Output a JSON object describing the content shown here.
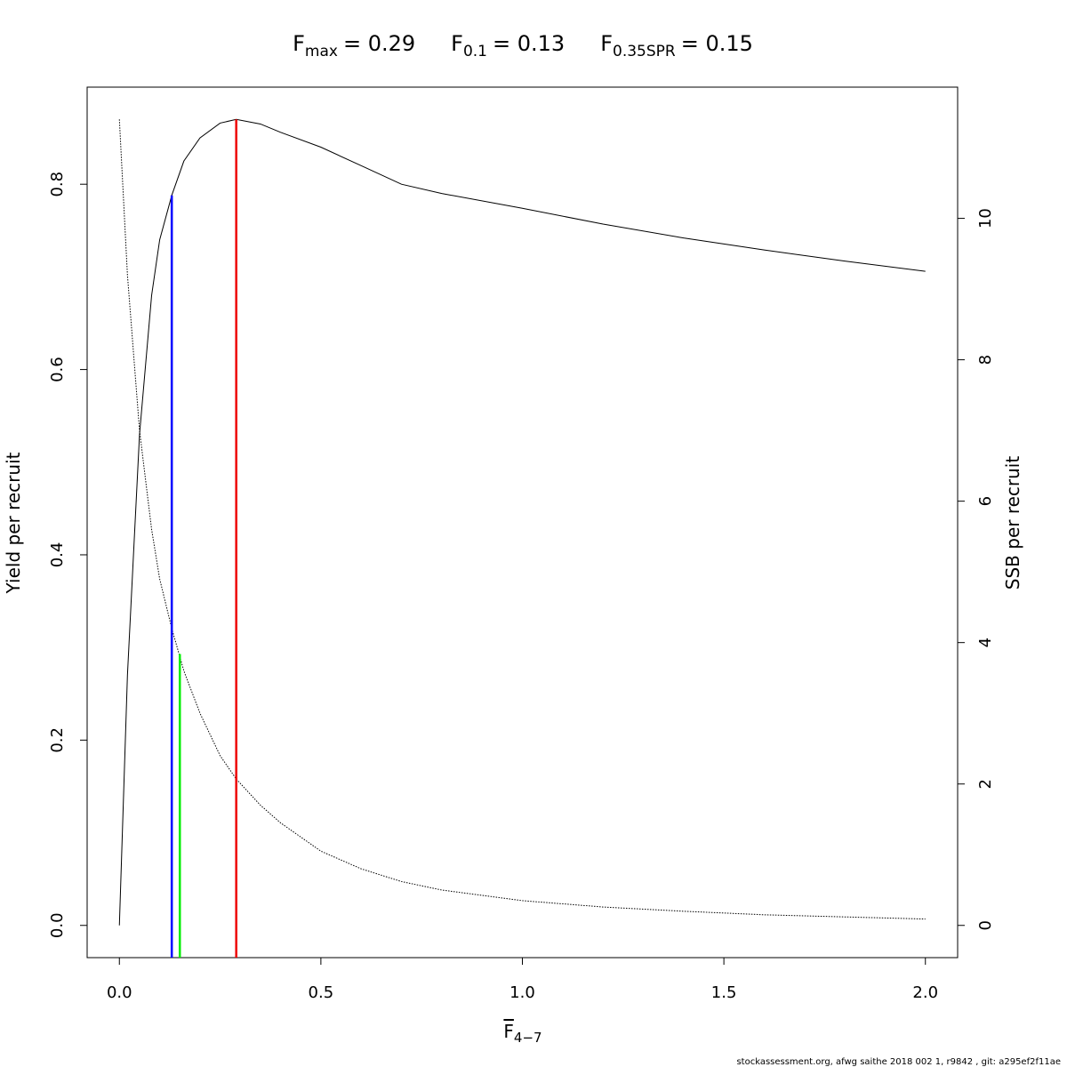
{
  "chart_data": {
    "type": "line",
    "title_parts": [
      {
        "text": "F",
        "subscript": "max",
        "label": "= 0.29"
      },
      {
        "text": "F",
        "subscript": "0.1",
        "label": "= 0.13"
      },
      {
        "text": "F",
        "subscript": "0.35SPR",
        "label": "= 0.15"
      }
    ],
    "x_label": {
      "text": "F",
      "subscript": "4−7"
    },
    "y_label": "Yield per recruit",
    "y2_label": "SSB per recruit",
    "footer": "stockassessment.org, afwg saithe 2018 002 1, r9842 , git: a295ef2f11ae",
    "x": [
      0,
      0.02,
      0.05,
      0.08,
      0.1,
      0.13,
      0.16,
      0.2,
      0.25,
      0.29,
      0.35,
      0.4,
      0.5,
      0.6,
      0.7,
      0.8,
      1.0,
      1.2,
      1.4,
      1.6,
      1.8,
      2.0
    ],
    "series": [
      {
        "name": "Yield per recruit",
        "color": "#000000",
        "dash": "solid",
        "values": [
          0,
          0.27,
          0.53,
          0.68,
          0.74,
          0.788,
          0.825,
          0.85,
          0.866,
          0.87,
          0.865,
          0.856,
          0.84,
          0.82,
          0.8,
          0.79,
          0.774,
          0.757,
          0.742,
          0.729,
          0.717,
          0.706
        ]
      },
      {
        "name": "SSB per recruit",
        "color": "#000000",
        "dash": "dotted",
        "axis": "y2",
        "values": [
          11.4,
          9.2,
          7.0,
          5.6,
          4.9,
          4.2,
          3.6,
          3.0,
          2.4,
          2.07,
          1.7,
          1.45,
          1.05,
          0.8,
          0.62,
          0.5,
          0.35,
          0.26,
          0.2,
          0.15,
          0.12,
          0.09
        ]
      }
    ],
    "reference_lines": [
      {
        "x": 0.13,
        "y": 0.788,
        "color": "#0000ff"
      },
      {
        "x": 0.15,
        "y": 0.293,
        "color": "#00ee00"
      },
      {
        "x": 0.29,
        "y": 0.87,
        "color": "#ee0000"
      }
    ],
    "xlim": [
      -0.08,
      2.08
    ],
    "ylim": [
      -0.0348,
      0.9048
    ],
    "y2lim": [
      -0.456,
      11.856
    ],
    "xticks": [
      {
        "value": 0,
        "label": "0.0"
      },
      0.5,
      {
        "value": 1,
        "label": "1.0"
      },
      1.5,
      {
        "value": 2,
        "label": "2.0"
      }
    ],
    "yticks": [
      {
        "value": 0,
        "label": "0.0"
      },
      0.2,
      0.4,
      0.6,
      0.8
    ],
    "y2ticks": [
      0,
      2,
      4,
      6,
      8,
      10
    ]
  }
}
